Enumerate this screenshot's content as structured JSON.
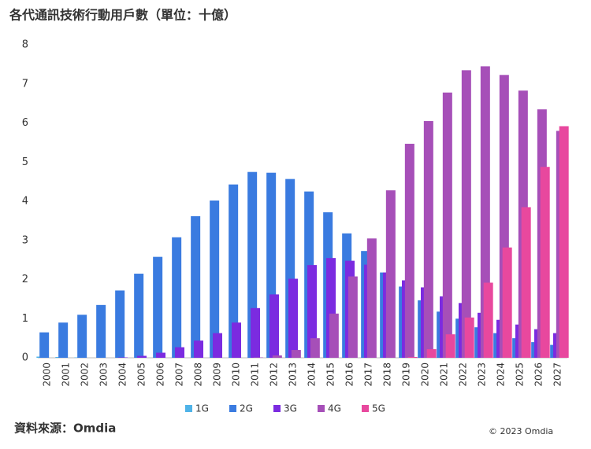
{
  "chart_data": {
    "type": "bar",
    "title": "各代通訊技術行動用戶數（單位：十億）",
    "categories": [
      "2000",
      "2001",
      "2002",
      "2003",
      "2004",
      "2005",
      "2006",
      "2007",
      "2008",
      "2009",
      "2010",
      "2011",
      "2012",
      "2013",
      "2014",
      "2015",
      "2016",
      "2017",
      "2018",
      "2019",
      "2020",
      "2021",
      "2022",
      "2023",
      "2024",
      "2025",
      "2026",
      "2027"
    ],
    "series": [
      {
        "name": "1G",
        "color": "#4fb3e8",
        "values": [
          0.03,
          0.02,
          0.01,
          0,
          0,
          0,
          0,
          0,
          0,
          0,
          0,
          0,
          0,
          0,
          0,
          0,
          0,
          0,
          0,
          0,
          0,
          0,
          0,
          0,
          0,
          0,
          0,
          0
        ]
      },
      {
        "name": "2G",
        "color": "#3a7be0",
        "values": [
          0.65,
          0.9,
          1.1,
          1.35,
          1.72,
          2.15,
          2.58,
          3.08,
          3.62,
          4.02,
          4.43,
          4.75,
          4.73,
          4.57,
          4.25,
          3.72,
          3.18,
          2.73,
          2.18,
          1.82,
          1.47,
          1.18,
          1.0,
          0.78,
          0.63,
          0.5,
          0.4,
          0.33
        ]
      },
      {
        "name": "3G",
        "color": "#7b2be0",
        "values": [
          0,
          0,
          0,
          0,
          0.01,
          0.05,
          0.13,
          0.27,
          0.44,
          0.63,
          0.9,
          1.27,
          1.62,
          2.02,
          2.37,
          2.55,
          2.48,
          2.38,
          2.18,
          1.98,
          1.8,
          1.57,
          1.4,
          1.15,
          0.97,
          0.85,
          0.73,
          0.63
        ]
      },
      {
        "name": "4G",
        "color": "#a64fb8",
        "values": [
          0,
          0,
          0,
          0,
          0,
          0,
          0,
          0,
          0,
          0,
          0,
          0.01,
          0.06,
          0.2,
          0.5,
          1.13,
          2.08,
          3.05,
          4.28,
          5.47,
          6.05,
          6.78,
          7.35,
          7.45,
          7.23,
          6.83,
          6.35,
          5.8
        ]
      },
      {
        "name": "5G",
        "color": "#e8489e",
        "values": [
          0,
          0,
          0,
          0,
          0,
          0,
          0,
          0,
          0,
          0,
          0,
          0,
          0,
          0,
          0,
          0,
          0,
          0,
          0,
          0.02,
          0.22,
          0.6,
          1.03,
          1.92,
          2.82,
          3.85,
          4.88,
          5.92
        ]
      }
    ],
    "ylim": [
      0,
      8
    ],
    "yticks": [
      0,
      1,
      2,
      3,
      4,
      5,
      6,
      7,
      8
    ],
    "grid": false,
    "source": "資料來源：Omdia",
    "copyright": "© 2023 Omdia"
  }
}
